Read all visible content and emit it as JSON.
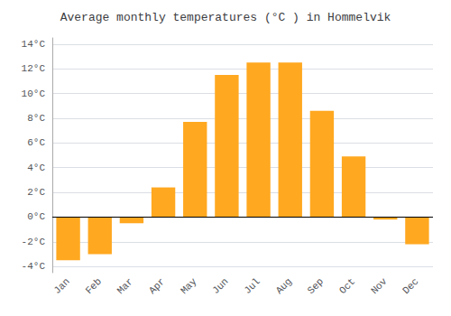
{
  "chart_data": {
    "type": "bar",
    "title": "Average monthly temperatures (°C ) in Hommelvik",
    "categories": [
      "Jan",
      "Feb",
      "Mar",
      "Apr",
      "May",
      "Jun",
      "Jul",
      "Aug",
      "Sep",
      "Oct",
      "Nov",
      "Dec"
    ],
    "values": [
      -3.5,
      -3.0,
      -0.5,
      2.4,
      7.7,
      11.5,
      12.5,
      12.5,
      8.6,
      4.9,
      -0.2,
      -2.2
    ],
    "color": "#FFA820",
    "ylim": [
      -4.5,
      14.5
    ],
    "yticks": [
      {
        "value": -4,
        "label": "-4°C"
      },
      {
        "value": -2,
        "label": "-2°C"
      },
      {
        "value": 0,
        "label": "0°C"
      },
      {
        "value": 2,
        "label": "2°C"
      },
      {
        "value": 4,
        "label": "4°C"
      },
      {
        "value": 6,
        "label": "6°C"
      },
      {
        "value": 8,
        "label": "8°C"
      },
      {
        "value": 10,
        "label": "10°C"
      },
      {
        "value": 12,
        "label": "12°C"
      },
      {
        "value": 14,
        "label": "14°C"
      }
    ],
    "grid": true
  }
}
